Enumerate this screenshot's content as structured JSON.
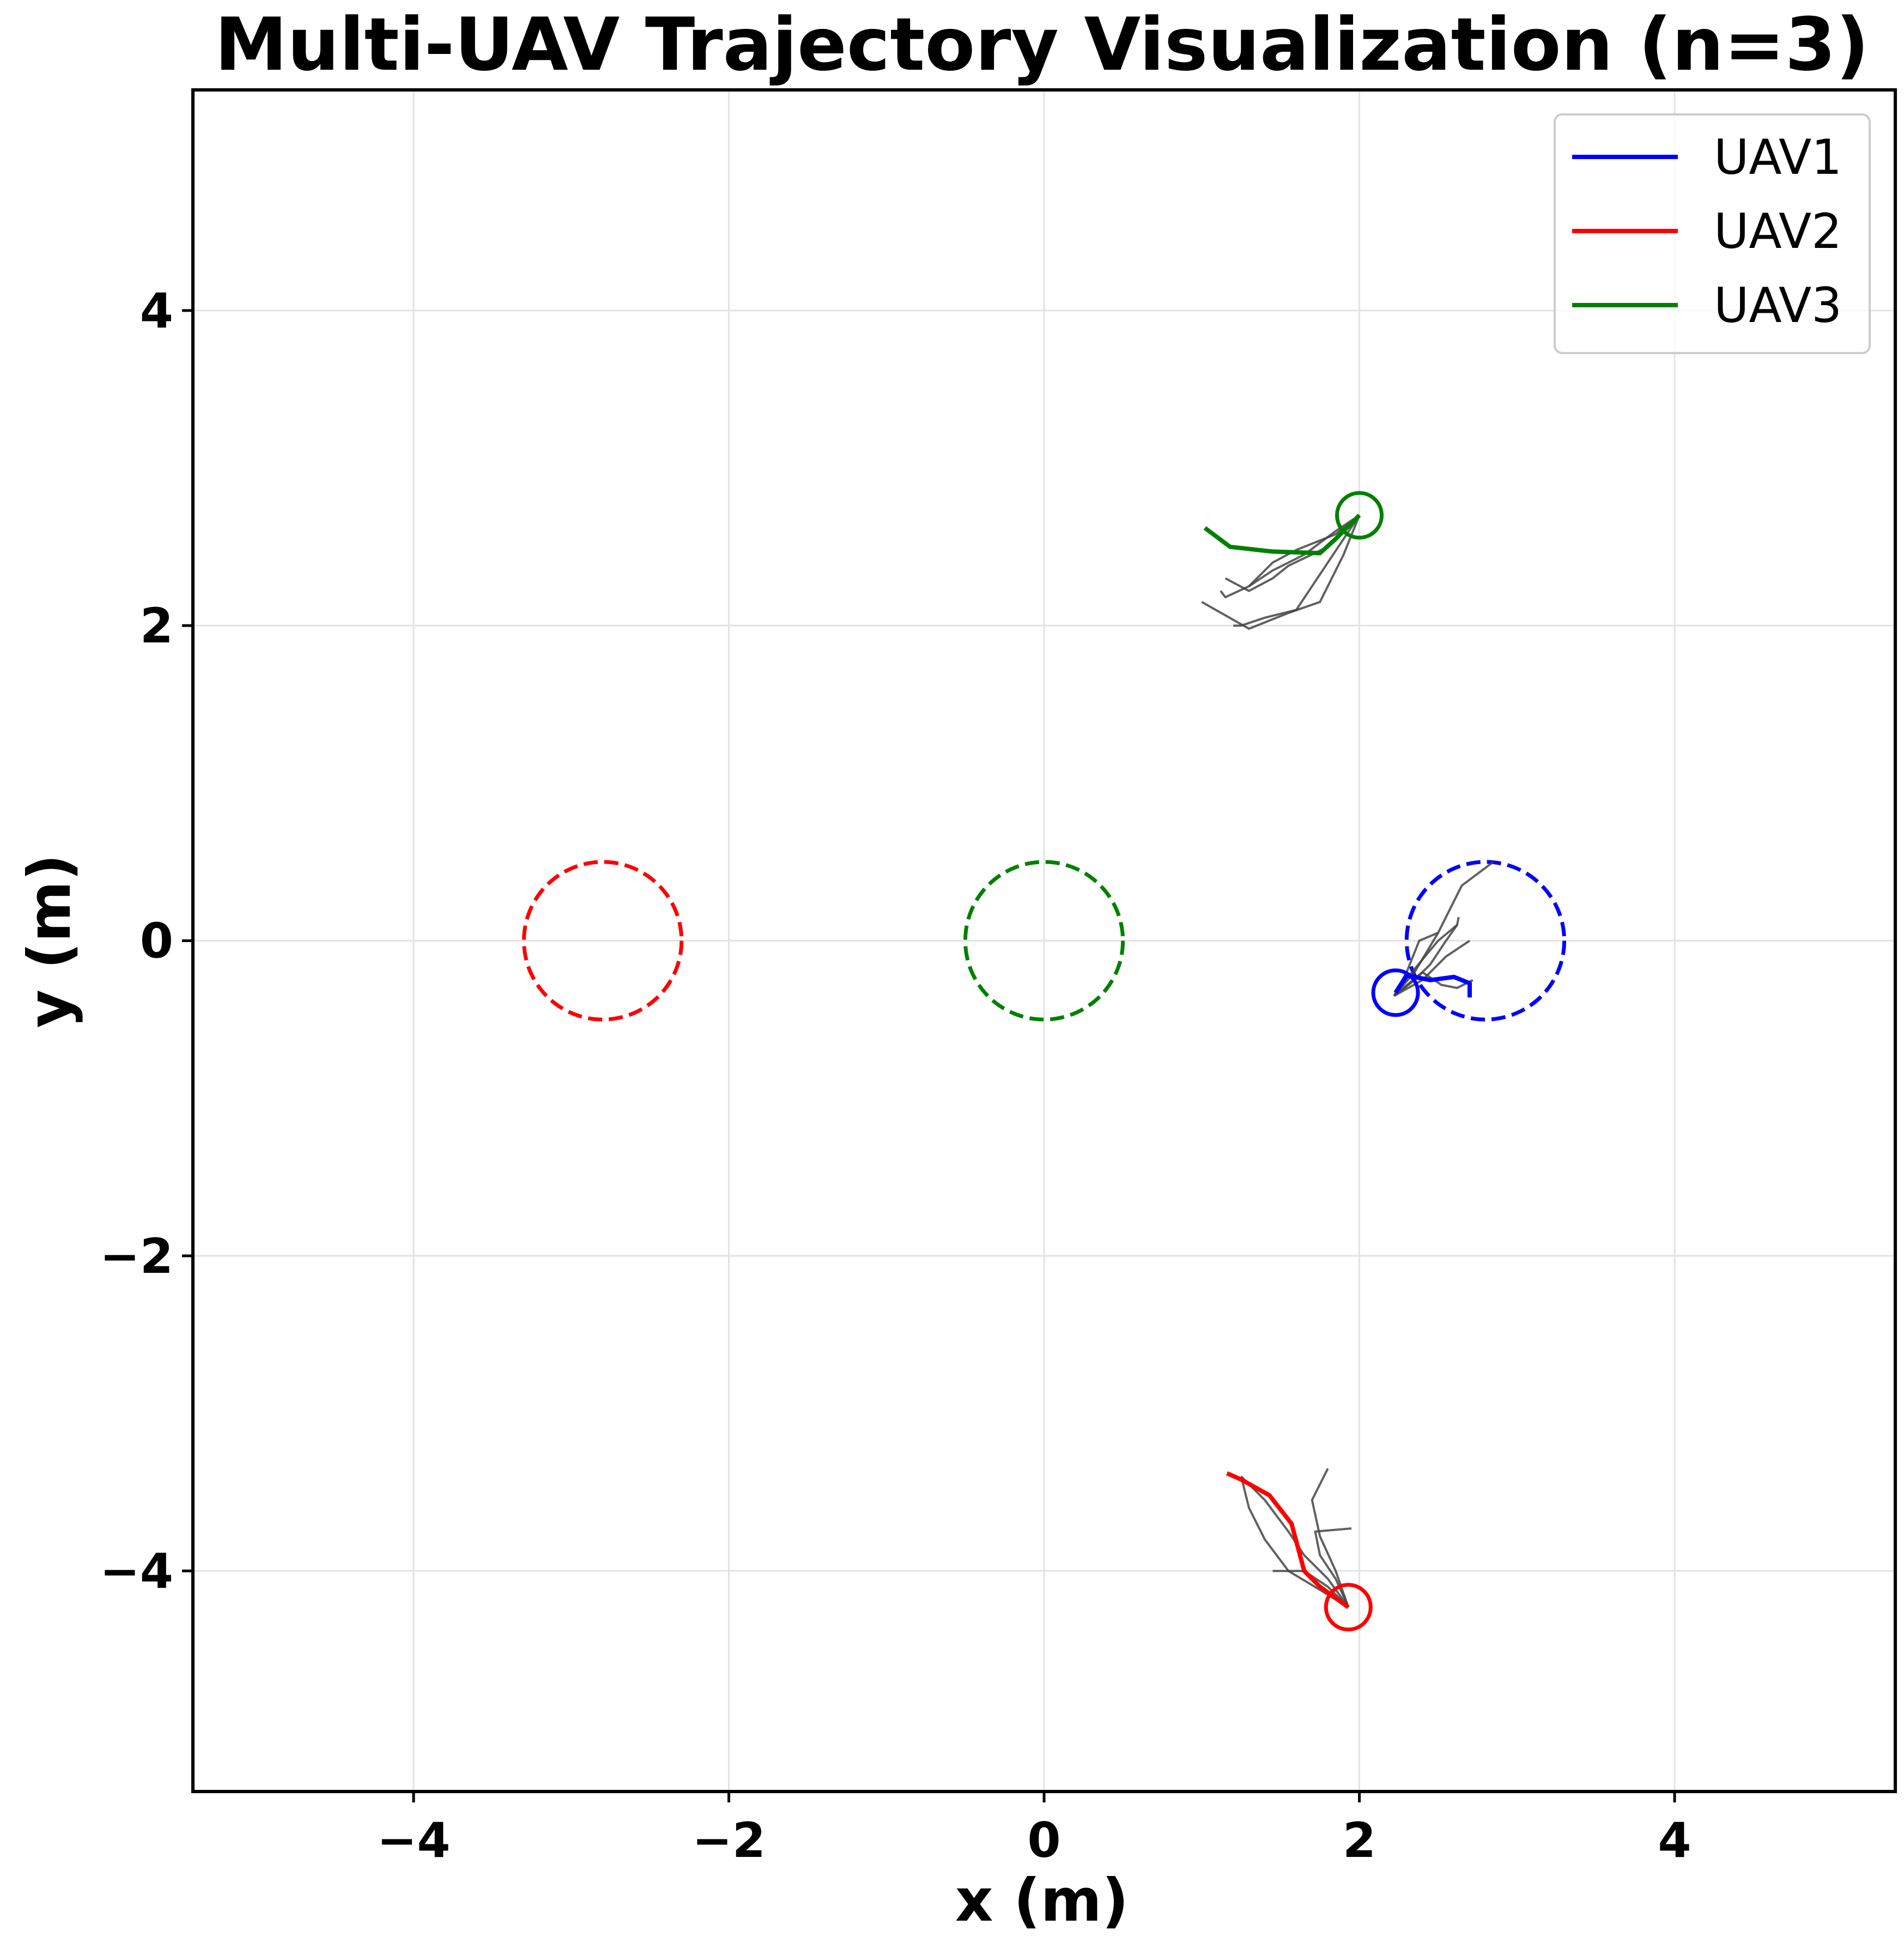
{
  "chart_data": {
    "type": "line",
    "title": "Multi-UAV Trajectory Visualization (n=3)",
    "xlabel": "x (m)",
    "ylabel": "y (m)",
    "xlim": [
      -5.4,
      5.4
    ],
    "ylim": [
      -5.4,
      5.4
    ],
    "grid": true,
    "legend_placement": "top-right",
    "xticks": [
      {
        "value": -4,
        "label": "−4"
      },
      {
        "value": -2,
        "label": "−2"
      },
      {
        "value": 0,
        "label": "0"
      },
      {
        "value": 2,
        "label": "2"
      },
      {
        "value": 4,
        "label": "4"
      }
    ],
    "yticks": [
      {
        "value": 4,
        "label": "4"
      },
      {
        "value": 2,
        "label": "2"
      },
      {
        "value": 0,
        "label": "0"
      },
      {
        "value": -2,
        "label": "−2"
      },
      {
        "value": -4,
        "label": "−4"
      }
    ],
    "series": [
      {
        "name": "UAV1",
        "color": "#0000ff",
        "x": [
          2.7,
          2.7,
          2.6,
          2.45,
          2.3,
          2.23
        ],
        "y": [
          -0.36,
          -0.27,
          -0.23,
          -0.25,
          -0.22,
          -0.33
        ],
        "current_position": [
          2.23,
          -0.33
        ],
        "goal": {
          "center": [
            2.8,
            0.0
          ],
          "radius": 0.5
        }
      },
      {
        "name": "UAV2",
        "color": "#ff0000",
        "x": [
          1.16,
          1.25,
          1.43,
          1.57,
          1.65,
          1.75,
          1.93
        ],
        "y": [
          -3.38,
          -3.42,
          -3.52,
          -3.7,
          -4.0,
          -4.1,
          -4.23
        ],
        "current_position": [
          1.93,
          -4.23
        ],
        "goal": {
          "center": [
            -2.8,
            0.0
          ],
          "radius": 0.5
        }
      },
      {
        "name": "UAV3",
        "color": "#008000",
        "x": [
          1.02,
          1.18,
          1.45,
          1.75,
          1.85,
          2.0
        ],
        "y": [
          2.62,
          2.5,
          2.47,
          2.46,
          2.55,
          2.7
        ],
        "current_position": [
          2.0,
          2.7
        ],
        "goal": {
          "center": [
            0.0,
            0.0
          ],
          "radius": 0.5
        }
      }
    ],
    "predicted_paths": {
      "color": "#444444",
      "paths": [
        {
          "x": [
            2.22,
            2.35,
            2.5,
            2.65,
            2.85
          ],
          "y": [
            -0.35,
            -0.2,
            0.05,
            0.35,
            0.5
          ]
        },
        {
          "x": [
            2.22,
            2.35,
            2.45,
            2.55,
            2.62
          ],
          "y": [
            -0.35,
            -0.25,
            -0.15,
            0.0,
            0.1
          ]
        },
        {
          "x": [
            2.22,
            2.35,
            2.5,
            2.62,
            2.63
          ],
          "y": [
            -0.35,
            -0.18,
            0.0,
            0.1,
            0.15
          ]
        },
        {
          "x": [
            2.22,
            2.4,
            2.55,
            2.7
          ],
          "y": [
            -0.35,
            -0.25,
            -0.1,
            0.0
          ]
        },
        {
          "x": [
            2.22,
            2.4,
            2.52,
            2.62,
            2.72
          ],
          "y": [
            -0.35,
            -0.2,
            -0.28,
            -0.3,
            -0.25
          ]
        },
        {
          "x": [
            2.22,
            2.3,
            2.38,
            2.5
          ],
          "y": [
            -0.35,
            -0.2,
            0.0,
            0.05
          ]
        },
        {
          "x": [
            1.93,
            1.8,
            1.65,
            1.55,
            1.4,
            1.25
          ],
          "y": [
            -4.23,
            -4.05,
            -3.9,
            -3.75,
            -3.55,
            -3.4
          ]
        },
        {
          "x": [
            1.93,
            1.85,
            1.75,
            1.7,
            1.8
          ],
          "y": [
            -4.23,
            -4.0,
            -3.78,
            -3.55,
            -3.35
          ]
        },
        {
          "x": [
            1.93,
            1.75,
            1.55,
            1.4,
            1.3,
            1.25
          ],
          "y": [
            -4.23,
            -4.12,
            -4.0,
            -3.8,
            -3.6,
            -3.4
          ]
        },
        {
          "x": [
            1.93,
            1.85,
            1.75,
            1.72,
            1.95
          ],
          "y": [
            -4.23,
            -4.05,
            -3.9,
            -3.75,
            -3.73
          ]
        },
        {
          "x": [
            1.93,
            1.8,
            1.65,
            1.45
          ],
          "y": [
            -4.23,
            -4.1,
            -4.0,
            -4.0
          ]
        },
        {
          "x": [
            2.0,
            1.85,
            1.6,
            1.45,
            1.3,
            1.15,
            1.12
          ],
          "y": [
            2.7,
            2.58,
            2.48,
            2.4,
            2.25,
            2.18,
            2.22
          ]
        },
        {
          "x": [
            2.0,
            1.8,
            1.55,
            1.45,
            1.3,
            1.15
          ],
          "y": [
            2.7,
            2.5,
            2.38,
            2.3,
            2.22,
            2.3
          ]
        },
        {
          "x": [
            2.0,
            1.8,
            1.6,
            1.4,
            1.25,
            1.2
          ],
          "y": [
            2.7,
            2.4,
            2.1,
            2.05,
            2.0,
            2.0
          ]
        },
        {
          "x": [
            2.0,
            1.9,
            1.75,
            1.55,
            1.3,
            1.0
          ],
          "y": [
            2.7,
            2.45,
            2.15,
            2.08,
            1.98,
            2.15
          ]
        },
        {
          "x": [
            2.0,
            1.85,
            1.65,
            1.45,
            1.3
          ],
          "y": [
            2.7,
            2.6,
            2.45,
            2.35,
            2.25
          ]
        }
      ]
    }
  }
}
